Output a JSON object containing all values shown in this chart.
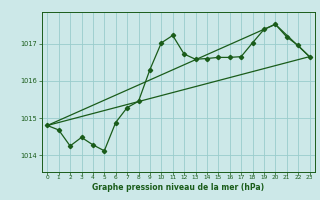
{
  "title": "Graphe pression niveau de la mer (hPa)",
  "background_color": "#cce8e8",
  "grid_color": "#99cccc",
  "line_color": "#1a5c1a",
  "xlim": [
    -0.5,
    23.5
  ],
  "ylim": [
    1013.55,
    1017.85
  ],
  "yticks": [
    1014,
    1015,
    1016,
    1017
  ],
  "xticks": [
    0,
    1,
    2,
    3,
    4,
    5,
    6,
    7,
    8,
    9,
    10,
    11,
    12,
    13,
    14,
    15,
    16,
    17,
    18,
    19,
    20,
    21,
    22,
    23
  ],
  "series1_x": [
    0,
    1,
    2,
    3,
    4,
    5,
    6,
    7,
    8,
    9,
    10,
    11,
    12,
    13,
    14,
    15,
    16,
    17,
    18,
    19,
    20,
    21,
    22,
    23
  ],
  "series1_y": [
    1014.8,
    1014.68,
    1014.25,
    1014.48,
    1014.28,
    1014.12,
    1014.88,
    1015.28,
    1015.45,
    1016.3,
    1017.02,
    1017.22,
    1016.72,
    1016.58,
    1016.6,
    1016.63,
    1016.63,
    1016.65,
    1017.02,
    1017.38,
    1017.52,
    1017.18,
    1016.95,
    1016.65
  ],
  "series2_x": [
    0,
    23
  ],
  "series2_y": [
    1014.8,
    1016.65
  ],
  "series3_x": [
    0,
    20,
    23
  ],
  "series3_y": [
    1014.8,
    1017.52,
    1016.65
  ]
}
